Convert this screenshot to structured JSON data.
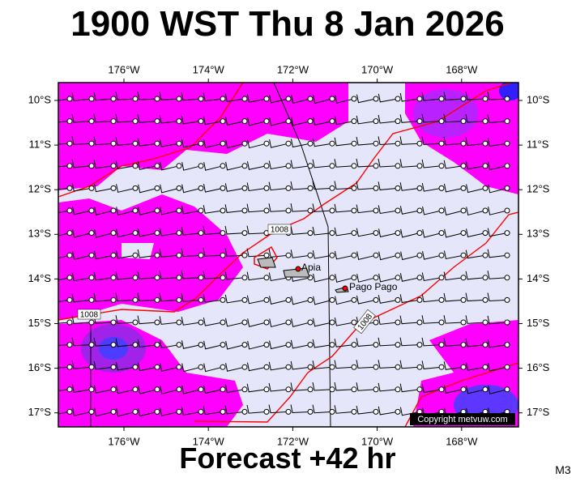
{
  "header": {
    "title": "1900 WST Thu 8 Jan 2026"
  },
  "map": {
    "lon_labels": [
      "176°W",
      "174°W",
      "172°W",
      "170°W",
      "168°W"
    ],
    "lat_labels": [
      "10°S",
      "11°S",
      "12°S",
      "13°S",
      "14°S",
      "15°S",
      "16°S",
      "17°S"
    ],
    "isobar_labels": [
      "1008",
      "1008",
      "1008"
    ],
    "places": [
      "Apia",
      "Pago Pago"
    ],
    "copyright": "Copyright metvuw.com"
  },
  "footer": {
    "forecast": "Forecast +42 hr",
    "model": "M3"
  }
}
